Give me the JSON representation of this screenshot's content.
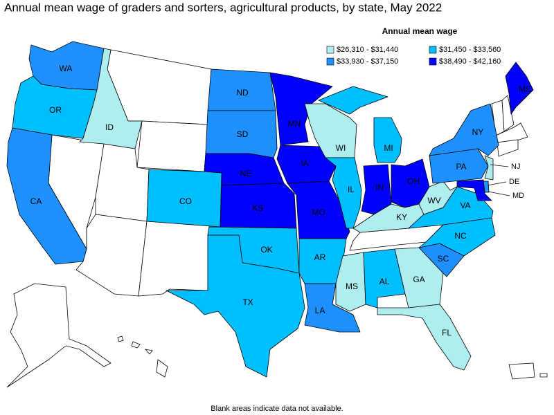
{
  "title": "Annual mean wage of graders and sorters, agricultural products, by state, May 2022",
  "legend": {
    "title": "Annual mean wage",
    "items": [
      {
        "label": "$26,310 - $31,440",
        "color": "#afeeee"
      },
      {
        "label": "$31,450 - $33,560",
        "color": "#00bfff"
      },
      {
        "label": "$33,930 - $37,150",
        "color": "#1e90ff"
      },
      {
        "label": "$38,490 - $42,160",
        "color": "#0000ff"
      }
    ]
  },
  "states": [
    {
      "abbr": "WA",
      "color": "#1e90ff"
    },
    {
      "abbr": "OR",
      "color": "#00bfff"
    },
    {
      "abbr": "ID",
      "color": "#afeeee"
    },
    {
      "abbr": "CA",
      "color": "#1e90ff"
    },
    {
      "abbr": "CO",
      "color": "#00bfff"
    },
    {
      "abbr": "ND",
      "color": "#1e90ff"
    },
    {
      "abbr": "SD",
      "color": "#1e90ff"
    },
    {
      "abbr": "NE",
      "color": "#0000ff"
    },
    {
      "abbr": "KS",
      "color": "#0000ff"
    },
    {
      "abbr": "OK",
      "color": "#00bfff"
    },
    {
      "abbr": "TX",
      "color": "#00bfff"
    },
    {
      "abbr": "MN",
      "color": "#0000ff"
    },
    {
      "abbr": "IA",
      "color": "#0000ff"
    },
    {
      "abbr": "MO",
      "color": "#0000ff"
    },
    {
      "abbr": "AR",
      "color": "#00bfff"
    },
    {
      "abbr": "LA",
      "color": "#1e90ff"
    },
    {
      "abbr": "WI",
      "color": "#afeeee"
    },
    {
      "abbr": "IL",
      "color": "#00bfff"
    },
    {
      "abbr": "MI",
      "color": "#00bfff"
    },
    {
      "abbr": "IN",
      "color": "#0000ff"
    },
    {
      "abbr": "OH",
      "color": "#0000ff"
    },
    {
      "abbr": "KY",
      "color": "#afeeee"
    },
    {
      "abbr": "MS",
      "color": "#afeeee"
    },
    {
      "abbr": "AL",
      "color": "#00bfff"
    },
    {
      "abbr": "GA",
      "color": "#afeeee"
    },
    {
      "abbr": "FL",
      "color": "#afeeee"
    },
    {
      "abbr": "SC",
      "color": "#1e90ff"
    },
    {
      "abbr": "NC",
      "color": "#00bfff"
    },
    {
      "abbr": "VA",
      "color": "#00bfff"
    },
    {
      "abbr": "WV",
      "color": "#afeeee"
    },
    {
      "abbr": "PA",
      "color": "#1e90ff"
    },
    {
      "abbr": "NY",
      "color": "#1e90ff"
    },
    {
      "abbr": "NJ",
      "color": "#afeeee"
    },
    {
      "abbr": "DE",
      "color": "#1e90ff"
    },
    {
      "abbr": "MD",
      "color": "#0000ff"
    },
    {
      "abbr": "ME",
      "color": "#0000ff"
    }
  ],
  "footnote": "Blank areas indicate data not available."
}
